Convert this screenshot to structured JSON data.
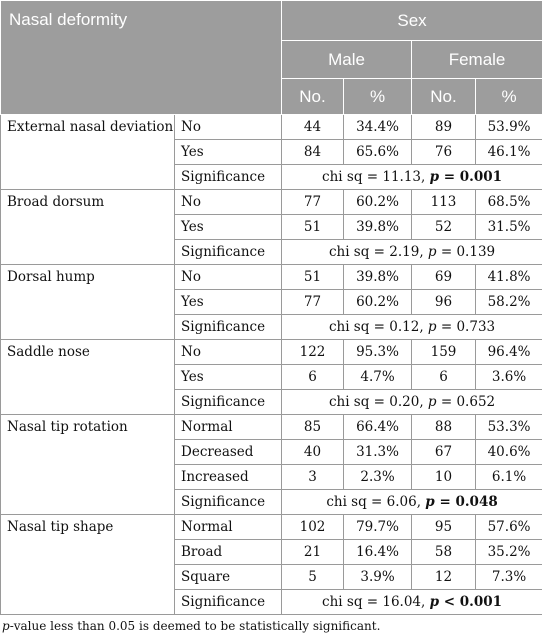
{
  "header": {
    "corner_label": "Nasal deformity",
    "sex_label": "Sex",
    "male_label": "Male",
    "female_label": "Female",
    "no_label": "No.",
    "pct_label": "%"
  },
  "groups": [
    {
      "name": "External nasal deviation",
      "rows": [
        {
          "category": "No",
          "male_no": "44",
          "male_pct": "34.4%",
          "female_no": "89",
          "female_pct": "53.9%"
        },
        {
          "category": "Yes",
          "male_no": "84",
          "male_pct": "65.6%",
          "female_no": "76",
          "female_pct": "46.1%"
        }
      ],
      "significance": {
        "label": "Significance",
        "prefix": "chi sq = 11.13, ",
        "p_label": "p",
        "p_rest": " = 0.001",
        "bold": true
      }
    },
    {
      "name": "Broad dorsum",
      "rows": [
        {
          "category": "No",
          "male_no": "77",
          "male_pct": "60.2%",
          "female_no": "113",
          "female_pct": "68.5%"
        },
        {
          "category": "Yes",
          "male_no": "51",
          "male_pct": "39.8%",
          "female_no": "52",
          "female_pct": "31.5%"
        }
      ],
      "significance": {
        "label": "Significance",
        "prefix": "chi sq = 2.19, ",
        "p_label": "p",
        "p_rest": " = 0.139",
        "bold": false
      }
    },
    {
      "name": "Dorsal hump",
      "rows": [
        {
          "category": "No",
          "male_no": "51",
          "male_pct": "39.8%",
          "female_no": "69",
          "female_pct": "41.8%"
        },
        {
          "category": "Yes",
          "male_no": "77",
          "male_pct": "60.2%",
          "female_no": "96",
          "female_pct": "58.2%"
        }
      ],
      "significance": {
        "label": "Significance",
        "prefix": "chi sq = 0.12, ",
        "p_label": "p",
        "p_rest": " = 0.733",
        "bold": false
      }
    },
    {
      "name": "Saddle nose",
      "rows": [
        {
          "category": "No",
          "male_no": "122",
          "male_pct": "95.3%",
          "female_no": "159",
          "female_pct": "96.4%"
        },
        {
          "category": "Yes",
          "male_no": "6",
          "male_pct": "4.7%",
          "female_no": "6",
          "female_pct": "3.6%"
        }
      ],
      "significance": {
        "label": "Significance",
        "prefix": "chi sq = 0.20, ",
        "p_label": "p",
        "p_rest": " = 0.652",
        "bold": false
      }
    },
    {
      "name": "Nasal tip rotation",
      "rows": [
        {
          "category": "Normal",
          "male_no": "85",
          "male_pct": "66.4%",
          "female_no": "88",
          "female_pct": "53.3%"
        },
        {
          "category": "Decreased",
          "male_no": "40",
          "male_pct": "31.3%",
          "female_no": "67",
          "female_pct": "40.6%"
        },
        {
          "category": "Increased",
          "male_no": "3",
          "male_pct": "2.3%",
          "female_no": "10",
          "female_pct": "6.1%"
        }
      ],
      "significance": {
        "label": "Significance",
        "prefix": "chi sq = 6.06, ",
        "p_label": "p",
        "p_rest": " = 0.048",
        "bold": true
      }
    },
    {
      "name": "Nasal tip shape",
      "rows": [
        {
          "category": "Normal",
          "male_no": "102",
          "male_pct": "79.7%",
          "female_no": "95",
          "female_pct": "57.6%"
        },
        {
          "category": "Broad",
          "male_no": "21",
          "male_pct": "16.4%",
          "female_no": "58",
          "female_pct": "35.2%"
        },
        {
          "category": "Square",
          "male_no": "5",
          "male_pct": "3.9%",
          "female_no": "12",
          "female_pct": "7.3%"
        }
      ],
      "significance": {
        "label": "Significance",
        "prefix": "chi sq = 16.04, ",
        "p_label": "p",
        "p_rest": " < 0.001",
        "bold": true
      }
    }
  ],
  "footnote": {
    "p_label": "p",
    "rest": "-value less than 0.05 is deemed to be statistically significant."
  },
  "colors": {
    "header_bg": "#9d9d9d",
    "header_text": "#ffffff",
    "grid": "#9a9a9a"
  }
}
